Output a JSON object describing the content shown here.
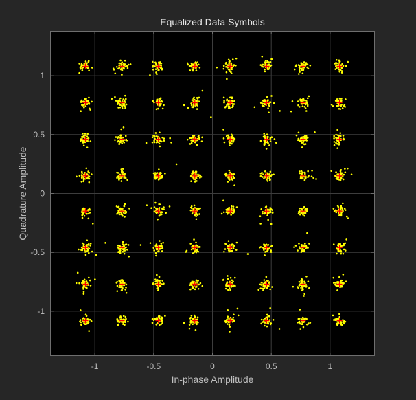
{
  "chart_data": {
    "type": "scatter",
    "title": "Equalized Data Symbols",
    "xlabel": "In-phase Amplitude",
    "ylabel": "Quadrature Amplitude",
    "xlim": [
      -1.38,
      1.38
    ],
    "ylim": [
      -1.38,
      1.38
    ],
    "xticks": [
      -1,
      -0.5,
      0,
      0.5,
      1
    ],
    "yticks": [
      -1,
      -0.5,
      0,
      0.5,
      1
    ],
    "xtick_labels": [
      "-1",
      "-0.5",
      "0",
      "0.5",
      "1"
    ],
    "ytick_labels": [
      "-1",
      "-0.5",
      "0",
      "0.5",
      "1"
    ],
    "grid": true,
    "series": [
      {
        "role": "received-symbols",
        "marker": "dot",
        "color": "#ffff00",
        "cluster_centers": [
          -1.08,
          -0.77,
          -0.46,
          -0.15,
          0.15,
          0.46,
          0.77,
          1.08
        ],
        "points_per_cluster": 40,
        "spread_std": 0.022
      },
      {
        "role": "reference-constellation",
        "marker": "plus",
        "color": "#ff0000",
        "cluster_centers": [
          -1.08,
          -0.77,
          -0.46,
          -0.15,
          0.15,
          0.46,
          0.77,
          1.08
        ]
      }
    ],
    "colors": {
      "figure_background": "#262626",
      "axes_background": "#000000",
      "grid": "#3d3d3d",
      "axes_edge": "#6e6e6e",
      "text": "#bfbfbf"
    }
  }
}
